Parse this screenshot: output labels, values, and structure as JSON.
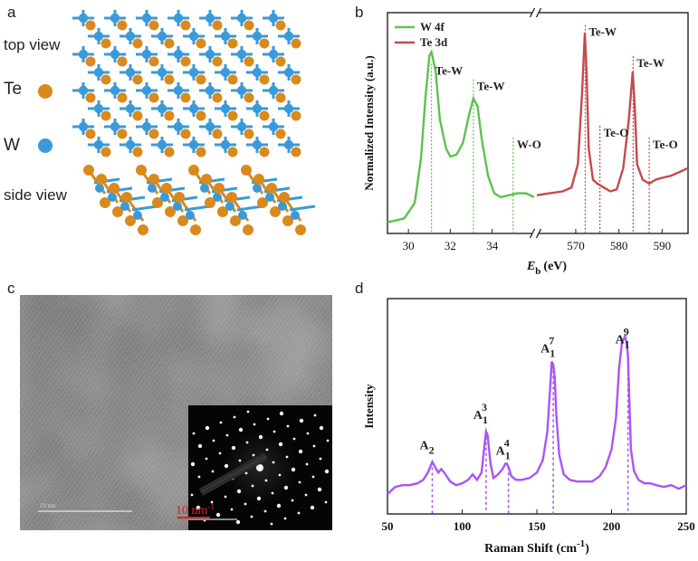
{
  "panel_labels": [
    "a",
    "b",
    "c",
    "d"
  ],
  "panel_a": {
    "top_view": "top view",
    "side_view": "side view",
    "legend": [
      {
        "label": "Te",
        "color": "#d98a1c"
      },
      {
        "label": "W",
        "color": "#3a9ad9"
      }
    ]
  },
  "chart_data": [
    {
      "type": "line",
      "panel": "b",
      "ylabel": "Normalized Intensity (a.u.)",
      "xlabel": "E",
      "xlabel_sub": "b",
      "xlabel_unit": "(eV)",
      "grid": false,
      "legend_placement": "top-left",
      "broken_x_axis": true,
      "segments": [
        {
          "xlim": [
            29,
            36
          ],
          "ticks": [
            30,
            32,
            34
          ]
        },
        {
          "xlim": [
            561,
            596
          ],
          "ticks": [
            570,
            580,
            590
          ]
        }
      ],
      "series": [
        {
          "name": "W 4f",
          "color": "#5cc24e",
          "segment": 0,
          "x": [
            29.0,
            29.8,
            30.3,
            30.6,
            30.8,
            31.0,
            31.1,
            31.3,
            31.5,
            31.8,
            32.0,
            32.3,
            32.6,
            32.9,
            33.1,
            33.3,
            33.5,
            33.8,
            34.1,
            34.4,
            34.8,
            35.2,
            35.6,
            36.0
          ],
          "y": [
            0.02,
            0.04,
            0.12,
            0.35,
            0.65,
            0.88,
            0.9,
            0.8,
            0.55,
            0.4,
            0.36,
            0.37,
            0.43,
            0.58,
            0.66,
            0.62,
            0.45,
            0.26,
            0.17,
            0.15,
            0.16,
            0.17,
            0.17,
            0.15
          ]
        },
        {
          "name": "Te 3d",
          "color": "#c44a4a",
          "segment": 1,
          "x": [
            561,
            564,
            567,
            569,
            570.5,
            571.5,
            572.1,
            572.5,
            573,
            574,
            575,
            576.5,
            578,
            579.5,
            581,
            582.3,
            583.2,
            583.7,
            584.2,
            585.5,
            587,
            588.5,
            590,
            592,
            594,
            596
          ],
          "y": [
            0.16,
            0.17,
            0.18,
            0.2,
            0.32,
            0.7,
            1.0,
            0.8,
            0.4,
            0.24,
            0.22,
            0.2,
            0.18,
            0.19,
            0.3,
            0.55,
            0.8,
            0.6,
            0.32,
            0.24,
            0.22,
            0.24,
            0.25,
            0.26,
            0.28,
            0.3
          ]
        }
      ],
      "annotations": [
        {
          "text": "Te-W",
          "x": 31.1,
          "y": 0.82,
          "segment": 0,
          "color": "#5cc24e"
        },
        {
          "text": "Te-W",
          "x": 33.1,
          "y": 0.74,
          "segment": 0,
          "color": "#5cc24e"
        },
        {
          "text": "W-O",
          "x": 35.0,
          "y": 0.44,
          "segment": 0,
          "color": "#5cc24e"
        },
        {
          "text": "Te-W",
          "x": 572.2,
          "y": 1.02,
          "segment": 1,
          "color": "#c44a4a"
        },
        {
          "text": "Te-O",
          "x": 575.6,
          "y": 0.5,
          "segment": 1,
          "color": "#c44a4a"
        },
        {
          "text": "Te-W",
          "x": 583.3,
          "y": 0.86,
          "segment": 1,
          "color": "#c44a4a"
        },
        {
          "text": "Te-O",
          "x": 587.0,
          "y": 0.44,
          "segment": 1,
          "color": "#c44a4a"
        }
      ]
    },
    {
      "type": "line",
      "panel": "d",
      "xlabel": "Raman Shift (cm",
      "xlabel_sup": "-1",
      "xlabel_close": ")",
      "ylabel": "Intensity",
      "xlim": [
        50,
        250
      ],
      "xticks": [
        50,
        100,
        150,
        200,
        250
      ],
      "grid": false,
      "series": [
        {
          "name": "",
          "color": "#a855f7",
          "x": [
            50,
            55,
            60,
            65,
            70,
            74,
            77,
            80,
            82,
            84,
            86,
            88,
            92,
            96,
            100,
            104,
            107,
            110,
            113,
            115,
            116,
            117,
            119,
            121,
            124,
            127,
            129,
            130,
            131,
            133,
            136,
            140,
            145,
            150,
            154,
            157,
            159,
            160,
            161,
            162,
            163,
            165,
            168,
            172,
            177,
            182,
            187,
            192,
            196,
            200,
            203,
            205,
            207,
            209,
            210,
            211,
            212,
            213,
            215,
            218,
            222,
            226,
            230,
            235,
            240,
            245,
            250
          ],
          "y": [
            0.05,
            0.09,
            0.1,
            0.1,
            0.11,
            0.13,
            0.17,
            0.23,
            0.2,
            0.17,
            0.19,
            0.17,
            0.12,
            0.1,
            0.11,
            0.13,
            0.16,
            0.13,
            0.17,
            0.33,
            0.4,
            0.38,
            0.22,
            0.14,
            0.16,
            0.19,
            0.22,
            0.22,
            0.2,
            0.15,
            0.13,
            0.13,
            0.14,
            0.17,
            0.24,
            0.4,
            0.66,
            0.79,
            0.77,
            0.7,
            0.5,
            0.27,
            0.16,
            0.13,
            0.12,
            0.12,
            0.12,
            0.15,
            0.2,
            0.3,
            0.48,
            0.75,
            0.9,
            0.93,
            0.9,
            0.82,
            0.55,
            0.3,
            0.18,
            0.13,
            0.11,
            0.11,
            0.1,
            0.09,
            0.1,
            0.08,
            0.1
          ]
        }
      ],
      "peaks": [
        {
          "label": "A",
          "sub": "2",
          "sup": "",
          "x": 80
        },
        {
          "label": "A",
          "sub": "1",
          "sup": "3",
          "x": 116
        },
        {
          "label": "A",
          "sub": "1",
          "sup": "4",
          "x": 131
        },
        {
          "label": "A",
          "sub": "1",
          "sup": "7",
          "x": 161
        },
        {
          "label": "A",
          "sub": "1",
          "sup": "9",
          "x": 211
        }
      ]
    }
  ],
  "panel_c": {
    "scale_bar_label": "10 nm",
    "scale_bar_sup": "-1",
    "scale_bar_color": "#e02020",
    "faint_scale_label": "10 nm"
  }
}
